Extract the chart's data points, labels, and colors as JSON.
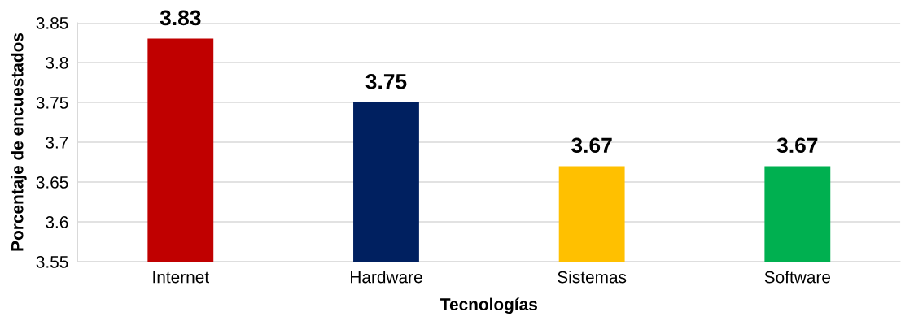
{
  "chart_data": {
    "type": "bar",
    "xlabel": "Tecnologías",
    "ylabel": "Porcentaje de encuestados",
    "categories": [
      "Internet",
      "Hardware",
      "Sistemas",
      "Software"
    ],
    "values": [
      3.83,
      3.75,
      3.67,
      3.67
    ],
    "colors": [
      "#c00000",
      "#002060",
      "#ffc000",
      "#00b050"
    ],
    "ylim": [
      3.55,
      3.85
    ],
    "yticks": [
      3.55,
      3.6,
      3.65,
      3.7,
      3.75,
      3.8,
      3.85
    ],
    "grid": "y",
    "data_labels": true
  }
}
